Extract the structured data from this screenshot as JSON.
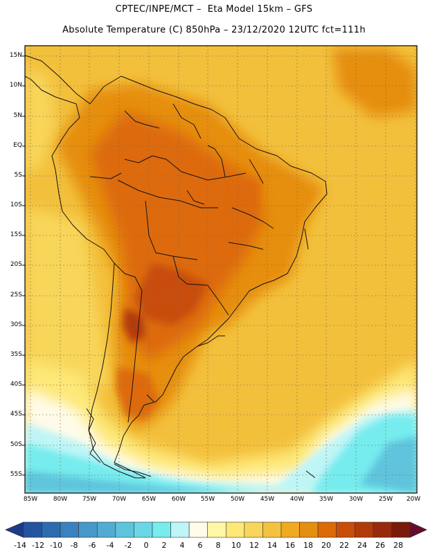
{
  "header": {
    "line1": "CPTEC/INPE/MCT –  Eta Model 15km – GFS",
    "line2": "Absolute Temperature (C) 850hPa – 23/12/2020 12UTC fct=111h"
  },
  "map": {
    "lat_ticks": [
      "15N",
      "10N",
      "5N",
      "EQ",
      "5S",
      "10S",
      "15S",
      "20S",
      "25S",
      "30S",
      "35S",
      "40S",
      "45S",
      "50S",
      "55S"
    ],
    "lon_ticks": [
      "85W",
      "80W",
      "75W",
      "70W",
      "65W",
      "60W",
      "55W",
      "50W",
      "45W",
      "40W",
      "35W",
      "30W",
      "25W",
      "20W"
    ],
    "icon": "south-america-coastline"
  },
  "colorbar": {
    "labels": [
      "-14",
      "-12",
      "-10",
      "-8",
      "-6",
      "-4",
      "-2",
      "0",
      "2",
      "4",
      "6",
      "8",
      "10",
      "12",
      "14",
      "16",
      "18",
      "20",
      "22",
      "24",
      "26",
      "28"
    ],
    "colors": [
      "#1e3a8a",
      "#2454a0",
      "#2c6bb0",
      "#3a82bf",
      "#4698c8",
      "#52acd2",
      "#5ec4dc",
      "#6ad8e4",
      "#76ecee",
      "#bff5f7",
      "#fffbe8",
      "#fff6a6",
      "#fde878",
      "#f8d65a",
      "#f3c340",
      "#efaa1f",
      "#e68e10",
      "#dd6a08",
      "#c84e08",
      "#b23a08",
      "#962a0a",
      "#7a1a0a",
      "#6a0a2a"
    ],
    "unit": "C"
  }
}
